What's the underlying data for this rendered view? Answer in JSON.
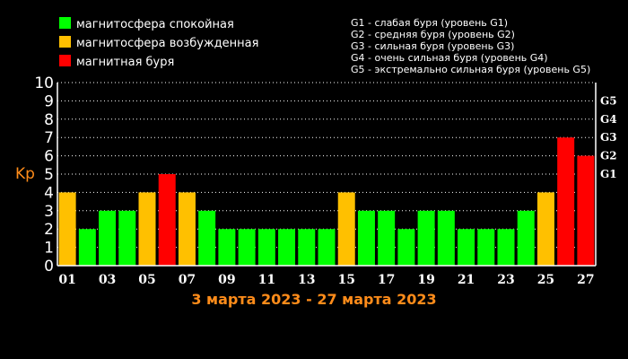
{
  "legend": [
    {
      "label": "магнитосфера спокойная",
      "color": "#00ff00"
    },
    {
      "label": "магнитосфера возбужденная",
      "color": "#ffc000"
    },
    {
      "label": "магнитная буря",
      "color": "#ff0000"
    }
  ],
  "storm_levels": [
    "G1 - слабая буря (уровень G1)",
    "G2 - средняя буря (уровень G2)",
    "G3 - сильная буря (уровень G3)",
    "G4 - очень сильная буря (уровень G4)",
    "G5 - экстремально сильная буря (уровень G5)"
  ],
  "chart_data": {
    "type": "bar",
    "title": "3 марта 2023 - 27 марта 2023",
    "ylabel": "Kp",
    "ylim": [
      0,
      10
    ],
    "yticks": [
      "0",
      "1",
      "2",
      "3",
      "4",
      "5",
      "6",
      "7",
      "8",
      "9",
      "10"
    ],
    "right_ticks": [
      {
        "label": "G1",
        "value": 5
      },
      {
        "label": "G2",
        "value": 6
      },
      {
        "label": "G3",
        "value": 7
      },
      {
        "label": "G4",
        "value": 8
      },
      {
        "label": "G5",
        "value": 9
      }
    ],
    "xticks": [
      "01",
      "03",
      "05",
      "07",
      "09",
      "11",
      "13",
      "15",
      "17",
      "19",
      "21",
      "23",
      "25",
      "27"
    ],
    "grid": true,
    "categories": [
      "01",
      "02",
      "03",
      "04",
      "05",
      "06",
      "07",
      "08",
      "09",
      "10",
      "11",
      "12",
      "13",
      "14",
      "15",
      "16",
      "17",
      "18",
      "19",
      "20",
      "21",
      "22",
      "23",
      "24",
      "25",
      "26",
      "27"
    ],
    "values": [
      4,
      2,
      3,
      3,
      4,
      5,
      4,
      3,
      2,
      2,
      2,
      2,
      2,
      2,
      4,
      3,
      3,
      2,
      3,
      3,
      2,
      2,
      2,
      3,
      4,
      7,
      6
    ],
    "colors": {
      "calm": "#00ff00",
      "excited": "#ffc000",
      "storm": "#ff0000"
    }
  }
}
